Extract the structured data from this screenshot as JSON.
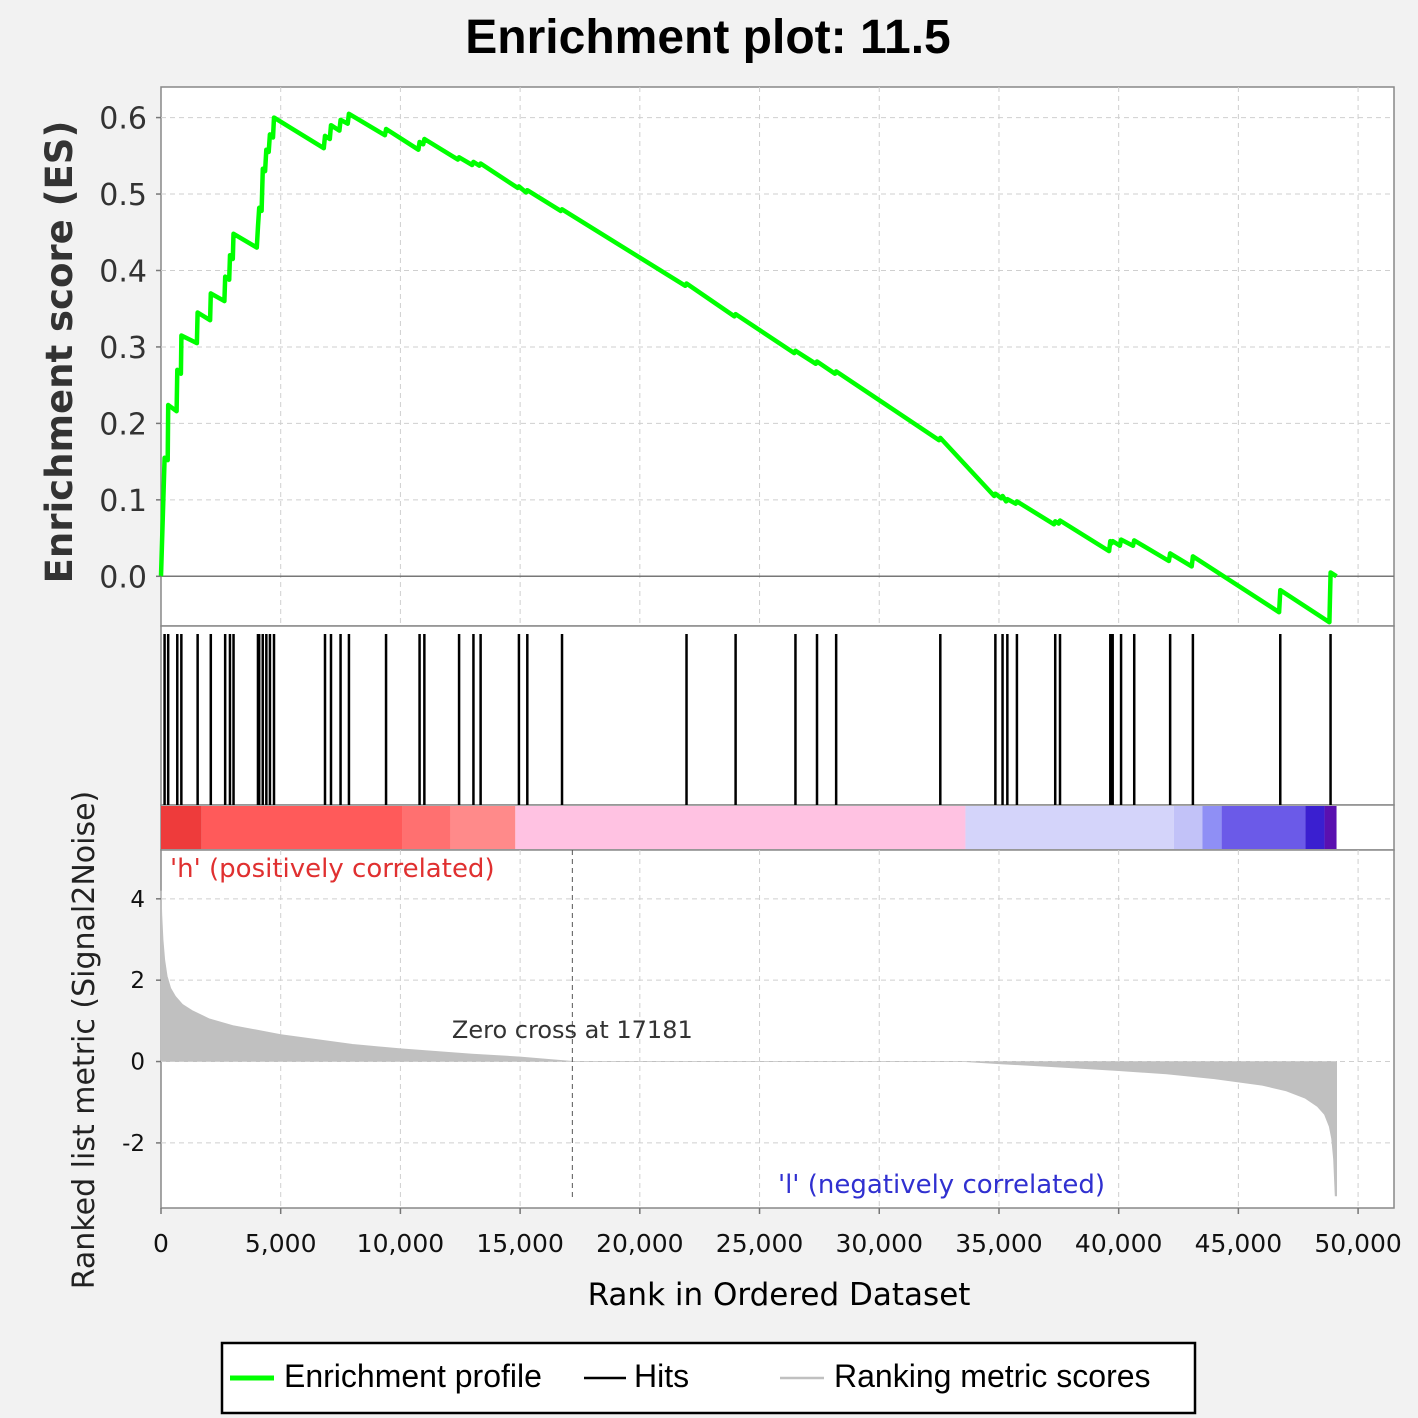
{
  "chart_data": {
    "type": "line",
    "title": "Enrichment plot: 11.5",
    "xlabel": "Rank in Ordered Dataset",
    "xlim": [
      0,
      51500
    ],
    "x_ticks": [
      0,
      5000,
      10000,
      15000,
      20000,
      25000,
      30000,
      35000,
      40000,
      45000,
      50000
    ],
    "x_tick_labels": [
      "0",
      "5,000",
      "10,000",
      "15,000",
      "20,000",
      "25,000",
      "30,000",
      "35,000",
      "40,000",
      "45,000",
      "50,000"
    ],
    "grid": true,
    "top_panel": {
      "ylabel": "Enrichment score (ES)",
      "ylim": [
        -0.065,
        0.64
      ],
      "y_ticks": [
        0.0,
        0.1,
        0.2,
        0.3,
        0.4,
        0.5,
        0.6
      ],
      "y_tick_labels": [
        "0.0",
        "0.1",
        "0.2",
        "0.3",
        "0.4",
        "0.5",
        "0.6"
      ],
      "series": [
        {
          "name": "Enrichment profile",
          "color": "#00ff00",
          "points": [
            [
              0,
              0.0
            ],
            [
              150,
              0.155
            ],
            [
              280,
              0.152
            ],
            [
              300,
              0.224
            ],
            [
              650,
              0.216
            ],
            [
              680,
              0.27
            ],
            [
              830,
              0.265
            ],
            [
              850,
              0.315
            ],
            [
              1500,
              0.305
            ],
            [
              1530,
              0.345
            ],
            [
              2050,
              0.335
            ],
            [
              2080,
              0.37
            ],
            [
              2650,
              0.36
            ],
            [
              2680,
              0.392
            ],
            [
              2850,
              0.388
            ],
            [
              2880,
              0.42
            ],
            [
              3000,
              0.415
            ],
            [
              3030,
              0.448
            ],
            [
              4000,
              0.43
            ],
            [
              4050,
              0.458
            ],
            [
              4100,
              0.482
            ],
            [
              4200,
              0.478
            ],
            [
              4250,
              0.533
            ],
            [
              4350,
              0.53
            ],
            [
              4400,
              0.558
            ],
            [
              4500,
              0.555
            ],
            [
              4550,
              0.578
            ],
            [
              4680,
              0.574
            ],
            [
              4720,
              0.6
            ],
            [
              6800,
              0.56
            ],
            [
              6850,
              0.576
            ],
            [
              7050,
              0.572
            ],
            [
              7100,
              0.59
            ],
            [
              7450,
              0.583
            ],
            [
              7500,
              0.597
            ],
            [
              7800,
              0.592
            ],
            [
              7850,
              0.605
            ],
            [
              9350,
              0.577
            ],
            [
              9400,
              0.585
            ],
            [
              10750,
              0.558
            ],
            [
              10800,
              0.568
            ],
            [
              10950,
              0.565
            ],
            [
              11000,
              0.572
            ],
            [
              12400,
              0.545
            ],
            [
              12450,
              0.548
            ],
            [
              13000,
              0.538
            ],
            [
              13050,
              0.542
            ],
            [
              13300,
              0.537
            ],
            [
              13350,
              0.54
            ],
            [
              14900,
              0.508
            ],
            [
              14950,
              0.51
            ],
            [
              15250,
              0.502
            ],
            [
              15300,
              0.505
            ],
            [
              16700,
              0.478
            ],
            [
              16750,
              0.48
            ],
            [
              21900,
              0.38
            ],
            [
              21950,
              0.383
            ],
            [
              23950,
              0.34
            ],
            [
              24000,
              0.343
            ],
            [
              26450,
              0.292
            ],
            [
              26500,
              0.295
            ],
            [
              27350,
              0.278
            ],
            [
              27400,
              0.281
            ],
            [
              28150,
              0.265
            ],
            [
              28200,
              0.268
            ],
            [
              32500,
              0.178
            ],
            [
              32550,
              0.181
            ],
            [
              34800,
              0.105
            ],
            [
              34850,
              0.108
            ],
            [
              35100,
              0.102
            ],
            [
              35150,
              0.105
            ],
            [
              35300,
              0.098
            ],
            [
              35350,
              0.101
            ],
            [
              35700,
              0.095
            ],
            [
              35750,
              0.098
            ],
            [
              37300,
              0.068
            ],
            [
              37350,
              0.072
            ],
            [
              37500,
              0.069
            ],
            [
              37550,
              0.073
            ],
            [
              39600,
              0.033
            ],
            [
              39650,
              0.046
            ],
            [
              39700,
              0.043
            ],
            [
              39750,
              0.046
            ],
            [
              40050,
              0.04
            ],
            [
              40100,
              0.048
            ],
            [
              40600,
              0.04
            ],
            [
              40650,
              0.047
            ],
            [
              42100,
              0.02
            ],
            [
              42150,
              0.03
            ],
            [
              43050,
              0.013
            ],
            [
              43100,
              0.026
            ],
            [
              46700,
              -0.047
            ],
            [
              46750,
              -0.018
            ],
            [
              48800,
              -0.06
            ],
            [
              48850,
              0.005
            ],
            [
              49100,
              0.0
            ]
          ]
        }
      ]
    },
    "hits_panel": {
      "name": "Hits",
      "color": "#000000",
      "positions": [
        150,
        300,
        680,
        850,
        1530,
        2080,
        2680,
        2880,
        3030,
        4050,
        4100,
        4250,
        4400,
        4550,
        4720,
        6850,
        7100,
        7500,
        7850,
        9400,
        10800,
        11000,
        12450,
        13050,
        13350,
        14950,
        15300,
        16750,
        21950,
        24000,
        26500,
        27400,
        28200,
        32550,
        34850,
        35150,
        35350,
        35750,
        37350,
        37550,
        39650,
        39750,
        40100,
        40650,
        42150,
        43100,
        46750,
        48850
      ]
    },
    "color_bar": {
      "segments": [
        {
          "start": 0,
          "end": 1700,
          "color": "#ee3b3b"
        },
        {
          "start": 1700,
          "end": 10100,
          "color": "#ff5a5a"
        },
        {
          "start": 10100,
          "end": 12100,
          "color": "#ff7070"
        },
        {
          "start": 12100,
          "end": 14800,
          "color": "#ff8a8a"
        },
        {
          "start": 14800,
          "end": 33600,
          "color": "#ffc2e2"
        },
        {
          "start": 33600,
          "end": 42300,
          "color": "#d4d4fa"
        },
        {
          "start": 42300,
          "end": 43500,
          "color": "#c2c2f8"
        },
        {
          "start": 43500,
          "end": 44300,
          "color": "#8f8ff5"
        },
        {
          "start": 44300,
          "end": 47800,
          "color": "#6b5ae8"
        },
        {
          "start": 47800,
          "end": 48600,
          "color": "#3a1fd0"
        },
        {
          "start": 48600,
          "end": 49100,
          "color": "#5a10b0"
        }
      ]
    },
    "bottom_panel": {
      "ylabel": "Ranked list metric (Signal2Noise)",
      "ylim": [
        -3.6,
        5.2
      ],
      "y_ticks": [
        -2,
        0,
        2,
        4
      ],
      "y_tick_labels": [
        "-2",
        "0",
        "2",
        "4"
      ],
      "series": [
        {
          "name": "Ranking metric scores",
          "color": "#c0c0c0",
          "points": [
            [
              0,
              4.2
            ],
            [
              30,
              3.6
            ],
            [
              80,
              3.0
            ],
            [
              150,
              2.5
            ],
            [
              250,
              2.1
            ],
            [
              400,
              1.8
            ],
            [
              600,
              1.6
            ],
            [
              900,
              1.4
            ],
            [
              1300,
              1.25
            ],
            [
              2000,
              1.05
            ],
            [
              3000,
              0.88
            ],
            [
              5000,
              0.66
            ],
            [
              8000,
              0.42
            ],
            [
              10000,
              0.31
            ],
            [
              13000,
              0.18
            ],
            [
              15000,
              0.11
            ],
            [
              17181,
              0.0
            ],
            [
              33600,
              0.0
            ],
            [
              35000,
              -0.05
            ],
            [
              38000,
              -0.15
            ],
            [
              40000,
              -0.22
            ],
            [
              42000,
              -0.3
            ],
            [
              44000,
              -0.42
            ],
            [
              46000,
              -0.58
            ],
            [
              47000,
              -0.72
            ],
            [
              47800,
              -0.9
            ],
            [
              48300,
              -1.1
            ],
            [
              48600,
              -1.3
            ],
            [
              48800,
              -1.6
            ],
            [
              48900,
              -1.9
            ],
            [
              48980,
              -2.4
            ],
            [
              49050,
              -3.3
            ],
            [
              49100,
              -3.3
            ]
          ]
        }
      ],
      "annotations": {
        "zero_cross": {
          "text": "Zero cross at 17181",
          "x": 17181
        },
        "positive_label": "'h' (positively correlated)",
        "negative_label": "'l' (negatively correlated)",
        "positive_color": "#e03030",
        "negative_color": "#3030d0"
      }
    },
    "legend": {
      "placement": "bottom",
      "entries": [
        {
          "label": "Enrichment profile",
          "color": "#00ff00",
          "kind": "thick-line"
        },
        {
          "label": "Hits",
          "color": "#000000",
          "kind": "line"
        },
        {
          "label": "Ranking metric scores",
          "color": "#c0c0c0",
          "kind": "line"
        }
      ]
    }
  }
}
